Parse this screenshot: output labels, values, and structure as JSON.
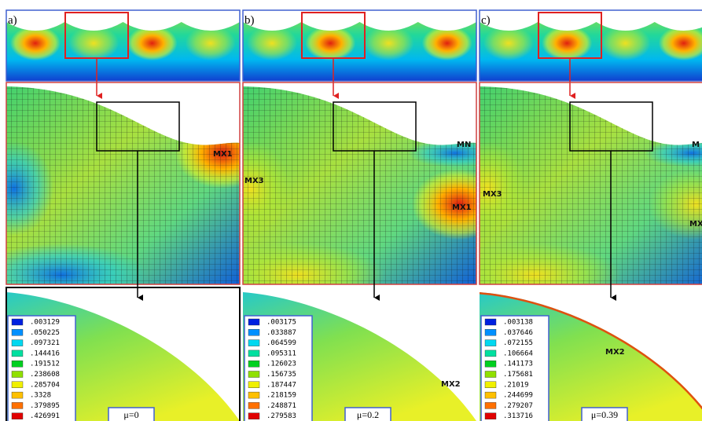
{
  "panels": [
    {
      "label": "a)",
      "mu": "μ=0",
      "markers": [
        "MX1"
      ],
      "legend": [
        ".003129",
        ".050225",
        ".097321",
        ".144416",
        ".191512",
        ".238608",
        ".285704",
        ".3328",
        ".379895",
        ".426991"
      ]
    },
    {
      "label": "b)",
      "mu": "μ=0.2",
      "markers": [
        "MN",
        "MX3",
        "MX1",
        "MX2"
      ],
      "legend": [
        ".003175",
        ".033887",
        ".064599",
        ".095311",
        ".126023",
        ".156735",
        ".187447",
        ".218159",
        ".248871",
        ".279583"
      ]
    },
    {
      "label": "c)",
      "mu": "μ=0.39",
      "markers": [
        "M",
        "MX3",
        "MX",
        "MX2"
      ],
      "legend": [
        ".003138",
        ".037646",
        ".072155",
        ".106664",
        ".141173",
        ".175681",
        ".21019",
        ".244699",
        ".279207",
        ".313716"
      ]
    }
  ]
}
